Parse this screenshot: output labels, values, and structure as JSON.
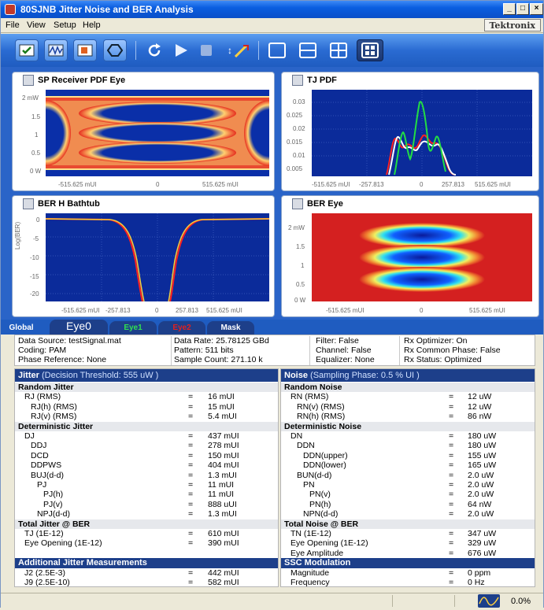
{
  "window": {
    "title": "80SJNB Jitter Noise and BER Analysis"
  },
  "menu": {
    "file": "File",
    "view": "View",
    "setup": "Setup",
    "help": "Help",
    "brand": "Tektronix"
  },
  "panes": {
    "sp_eye": {
      "title": "SP Receiver PDF Eye",
      "yticks": [
        "2 mW",
        "1.5",
        "1",
        "0.5",
        "0 W"
      ],
      "xticks": [
        "-515.625 mUI",
        "0",
        "515.625 mUI"
      ]
    },
    "tj_pdf": {
      "title": "TJ PDF",
      "yticks": [
        "0.03",
        "0.025",
        "0.02",
        "0.015",
        "0.01",
        "0.005"
      ],
      "xticks": [
        "-515.625 mUI",
        "-257.813",
        "0",
        "257.813",
        "515.625 mUI"
      ]
    },
    "bathtub": {
      "title": "BER H Bathtub",
      "ylabel": "Log(BER)",
      "yticks": [
        "0",
        "-5",
        "-10",
        "-15",
        "-20"
      ],
      "xticks": [
        "-515.625 mUI",
        "-257.813",
        "0",
        "257.813",
        "515.625 mUI"
      ]
    },
    "ber_eye": {
      "title": "BER Eye",
      "yticks": [
        "2 mW",
        "1.5",
        "1",
        "0.5",
        "0 W"
      ],
      "xticks": [
        "-515.625 mUI",
        "0",
        "515.625 mUI"
      ]
    }
  },
  "tabs": {
    "global": "Global",
    "eye0": "Eye0",
    "eye1": "Eye1",
    "eye2": "Eye2",
    "mask": "Mask"
  },
  "info": {
    "col1": [
      "Data Source: testSignal.mat",
      "Coding: PAM",
      "Phase Reference: None"
    ],
    "col2": [
      "Data Rate: 25.78125 GBd",
      "Pattern: 511 bits",
      "Sample Count: 271.10 k"
    ],
    "col3": [
      "Filter: False",
      "Channel: False",
      "Equalizer: None"
    ],
    "col4": [
      "Rx Optimizer: On",
      "Rx Common Phase: False",
      "Rx Status: Optimized"
    ]
  },
  "jitter": {
    "header": "Jitter",
    "header_note": "(Decision Threshold: 555 uW )",
    "rows": [
      {
        "label": "Random Jitter",
        "sect": true
      },
      {
        "label": "RJ (RMS)",
        "eq": "=",
        "val": "16 mUI",
        "ind": 1
      },
      {
        "label": "RJ(h) (RMS)",
        "eq": "=",
        "val": "15 mUI",
        "ind": 2
      },
      {
        "label": "RJ(v) (RMS)",
        "eq": "=",
        "val": "5.4 mUI",
        "ind": 2
      },
      {
        "label": "Deterministic Jitter",
        "sect": true
      },
      {
        "label": "DJ",
        "eq": "=",
        "val": "437 mUI",
        "ind": 1
      },
      {
        "label": "DDJ",
        "eq": "=",
        "val": "278 mUI",
        "ind": 2
      },
      {
        "label": "DCD",
        "eq": "=",
        "val": "150 mUI",
        "ind": 2
      },
      {
        "label": "DDPWS",
        "eq": "=",
        "val": "404 mUI",
        "ind": 2
      },
      {
        "label": "BUJ(d-d)",
        "eq": "=",
        "val": "1.3 mUI",
        "ind": 2
      },
      {
        "label": "PJ",
        "eq": "=",
        "val": "11 mUI",
        "ind": 3
      },
      {
        "label": "PJ(h)",
        "eq": "=",
        "val": "11 mUI",
        "ind": 4
      },
      {
        "label": "PJ(v)",
        "eq": "=",
        "val": "888 uUI",
        "ind": 4
      },
      {
        "label": "NPJ(d-d)",
        "eq": "=",
        "val": "1.3 mUI",
        "ind": 3
      },
      {
        "label": "Total Jitter @ BER",
        "sect": true
      },
      {
        "label": "TJ (1E-12)",
        "eq": "=",
        "val": "610 mUI",
        "ind": 1
      },
      {
        "label": "Eye Opening (1E-12)",
        "eq": "=",
        "val": "390 mUI",
        "ind": 1
      },
      {
        "label": "",
        "blank": true
      },
      {
        "label": "Additional Jitter Measurements",
        "head": true
      },
      {
        "label": "J2 (2.5E-3)",
        "eq": "=",
        "val": "442 mUI",
        "ind": 1
      },
      {
        "label": "J9 (2.5E-10)",
        "eq": "=",
        "val": "582 mUI",
        "ind": 1
      }
    ]
  },
  "noise": {
    "header": "Noise",
    "header_note": "(Sampling Phase: 0.5 % UI )",
    "rows": [
      {
        "label": "Random Noise",
        "sect": true
      },
      {
        "label": "RN (RMS)",
        "eq": "=",
        "val": "12 uW",
        "ind": 1
      },
      {
        "label": "RN(v) (RMS)",
        "eq": "=",
        "val": "12 uW",
        "ind": 2
      },
      {
        "label": "RN(h) (RMS)",
        "eq": "=",
        "val": "86 nW",
        "ind": 2
      },
      {
        "label": "Deterministic Noise",
        "sect": true
      },
      {
        "label": "DN",
        "eq": "=",
        "val": "180 uW",
        "ind": 1
      },
      {
        "label": "DDN",
        "eq": "=",
        "val": "180 uW",
        "ind": 2
      },
      {
        "label": "DDN(upper)",
        "eq": "=",
        "val": "155 uW",
        "ind": 3
      },
      {
        "label": "DDN(lower)",
        "eq": "=",
        "val": "165 uW",
        "ind": 3
      },
      {
        "label": "BUN(d-d)",
        "eq": "=",
        "val": "2.0 uW",
        "ind": 2
      },
      {
        "label": "PN",
        "eq": "=",
        "val": "2.0 uW",
        "ind": 3
      },
      {
        "label": "PN(v)",
        "eq": "=",
        "val": "2.0 uW",
        "ind": 4
      },
      {
        "label": "PN(h)",
        "eq": "=",
        "val": "64 nW",
        "ind": 4
      },
      {
        "label": "NPN(d-d)",
        "eq": "=",
        "val": "2.0 uW",
        "ind": 3
      },
      {
        "label": "Total Noise @ BER",
        "sect": true
      },
      {
        "label": "TN (1E-12)",
        "eq": "=",
        "val": "347 uW",
        "ind": 1
      },
      {
        "label": "Eye Opening (1E-12)",
        "eq": "=",
        "val": "329 uW",
        "ind": 1
      },
      {
        "label": "Eye Amplitude",
        "eq": "=",
        "val": "676 uW",
        "ind": 1
      },
      {
        "label": "SSC Modulation",
        "head": true
      },
      {
        "label": "Magnitude",
        "eq": "=",
        "val": "0 ppm",
        "ind": 1
      },
      {
        "label": "Frequency",
        "eq": "=",
        "val": "0 Hz",
        "ind": 1
      }
    ]
  },
  "status": {
    "percent": "0.0%"
  }
}
